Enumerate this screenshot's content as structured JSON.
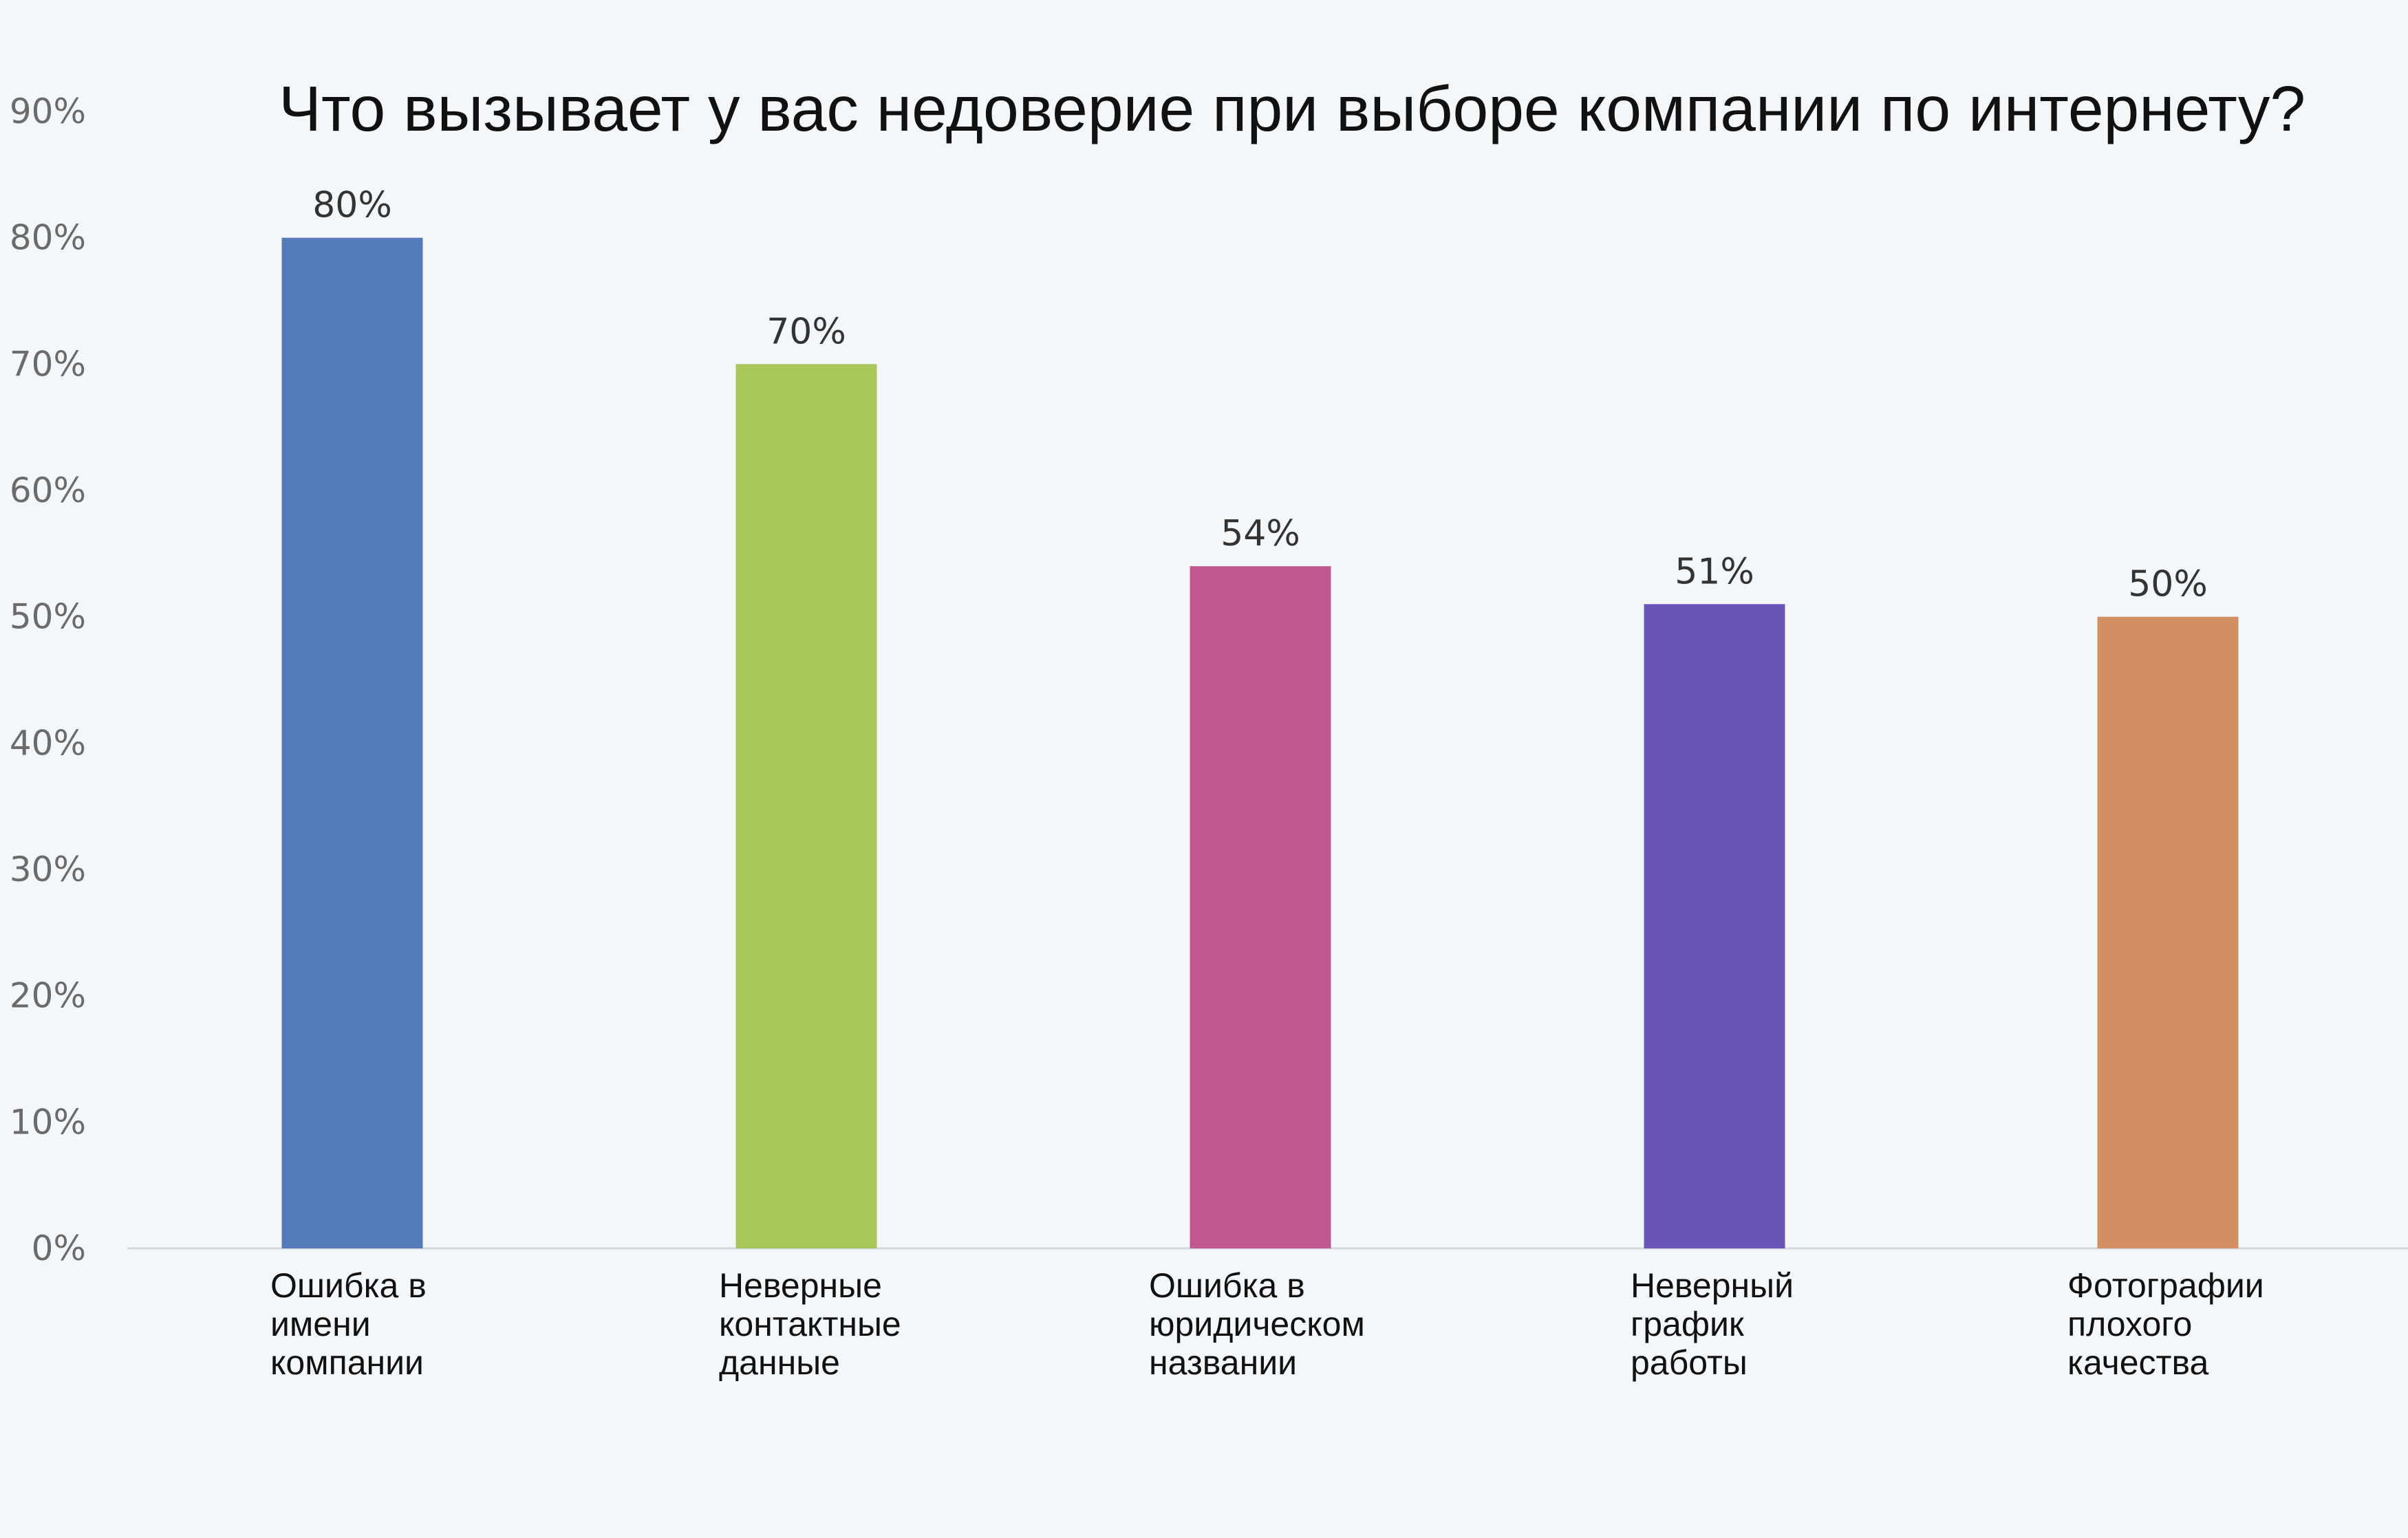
{
  "chart_data": {
    "type": "bar",
    "title": "Что вызывает у вас недоверие при выборе компании по интернету?",
    "categories": [
      [
        "Ошибка в",
        "имени",
        "компании"
      ],
      [
        "Неверные",
        "контактные",
        "данные"
      ],
      [
        "Ошибка в",
        "юридическом",
        "названии"
      ],
      [
        "Неверный",
        "график",
        "работы"
      ],
      [
        "Фотографии",
        "плохого",
        "качества"
      ]
    ],
    "values": [
      80,
      70,
      54,
      51,
      50
    ],
    "data_labels": [
      "80%",
      "70%",
      "54%",
      "51%",
      "50%"
    ],
    "bar_colors": [
      "#547bb9",
      "#a7c75b",
      "#c0578e",
      "#6b54b8",
      "#d28f61"
    ],
    "yticks": [
      "0%",
      "10%",
      "20%",
      "30%",
      "40%",
      "50%",
      "60%",
      "70%",
      "80%",
      "90%"
    ],
    "ylim": [
      0,
      90
    ],
    "xlabel": "",
    "ylabel": "",
    "grid": false,
    "legend": "none"
  }
}
